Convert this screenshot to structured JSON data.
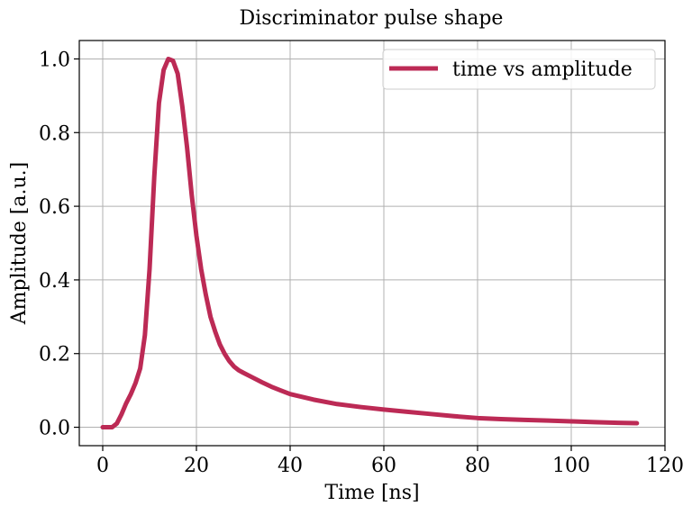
{
  "chart_data": {
    "type": "line",
    "title": "Discriminator pulse shape",
    "xlabel": "Time [ns]",
    "ylabel": "Amplitude [a.u.]",
    "xlim": [
      -5,
      120
    ],
    "ylim": [
      -0.05,
      1.05
    ],
    "xticks": [
      0,
      20,
      40,
      60,
      80,
      100,
      120
    ],
    "yticks": [
      0.0,
      0.2,
      0.4,
      0.6,
      0.8,
      1.0
    ],
    "xtick_labels": [
      "0",
      "20",
      "40",
      "60",
      "80",
      "100",
      "120"
    ],
    "ytick_labels": [
      "0.0",
      "0.2",
      "0.4",
      "0.6",
      "0.8",
      "1.0"
    ],
    "grid": true,
    "legend_position": "top-right",
    "series": [
      {
        "name": "time vs amplitude",
        "color": "#bc2a55",
        "x": [
          0,
          1,
          2,
          3,
          4,
          5,
          6,
          7,
          8,
          9,
          10,
          11,
          12,
          13,
          14,
          15,
          16,
          17,
          18,
          19,
          20,
          21,
          22,
          23,
          24,
          25,
          26,
          27,
          28,
          29,
          30,
          32,
          34,
          36,
          38,
          40,
          45,
          50,
          55,
          60,
          65,
          70,
          75,
          80,
          85,
          90,
          95,
          100,
          105,
          110,
          114
        ],
        "y": [
          0.0,
          0.0,
          0.0,
          0.01,
          0.035,
          0.065,
          0.09,
          0.12,
          0.16,
          0.25,
          0.43,
          0.68,
          0.88,
          0.97,
          1.0,
          0.995,
          0.96,
          0.87,
          0.76,
          0.63,
          0.52,
          0.43,
          0.36,
          0.3,
          0.26,
          0.225,
          0.2,
          0.18,
          0.165,
          0.155,
          0.148,
          0.135,
          0.122,
          0.11,
          0.1,
          0.09,
          0.075,
          0.063,
          0.055,
          0.048,
          0.042,
          0.036,
          0.03,
          0.025,
          0.022,
          0.02,
          0.018,
          0.016,
          0.014,
          0.012,
          0.011
        ]
      }
    ]
  }
}
